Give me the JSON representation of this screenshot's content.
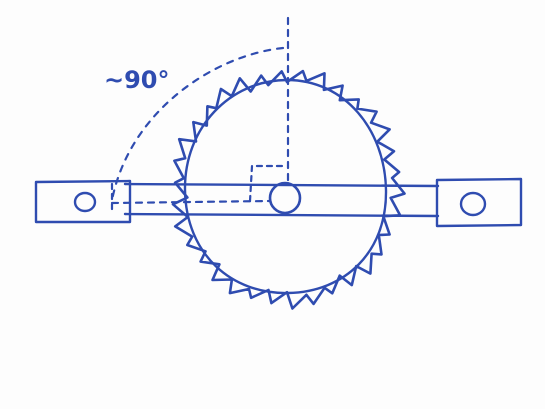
{
  "diagram": {
    "angle_label": "~90°",
    "ink_color": "#2f4cb0",
    "paper_color": "#fdfdfd"
  }
}
